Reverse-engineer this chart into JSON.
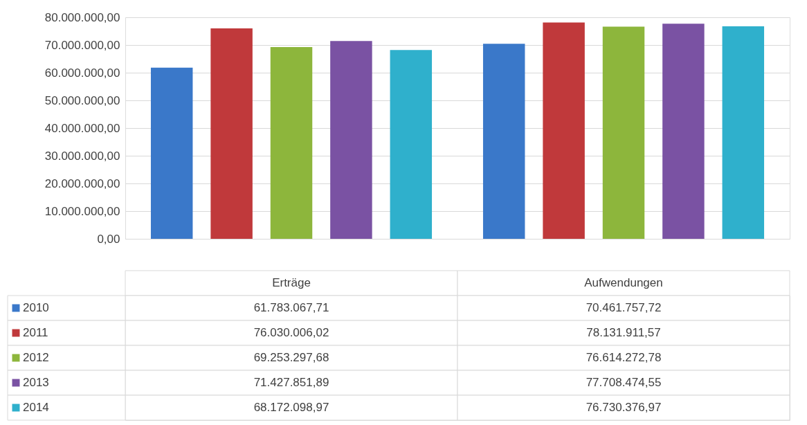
{
  "chart_data": {
    "type": "bar",
    "categories": [
      "Erträge",
      "Aufwendungen"
    ],
    "series": [
      {
        "name": "2010",
        "color": "#3a78c9",
        "values": [
          61783067.71,
          70461757.72
        ],
        "value_labels": [
          "61.783.067,71",
          "70.461.757,72"
        ]
      },
      {
        "name": "2011",
        "color": "#c0393b",
        "values": [
          76030006.02,
          78131911.57
        ],
        "value_labels": [
          "76.030.006,02",
          "78.131.911,57"
        ]
      },
      {
        "name": "2012",
        "color": "#8db63c",
        "values": [
          69253297.68,
          76614272.78
        ],
        "value_labels": [
          "69.253.297,68",
          "76.614.272,78"
        ]
      },
      {
        "name": "2013",
        "color": "#7a52a3",
        "values": [
          71427851.89,
          77708474.55
        ],
        "value_labels": [
          "71.427.851,89",
          "77.708.474,55"
        ]
      },
      {
        "name": "2014",
        "color": "#2fb0cc",
        "values": [
          68172098.97,
          76730376.97
        ],
        "value_labels": [
          "68.172.098,97",
          "76.730.376,97"
        ]
      }
    ],
    "ylim": [
      0,
      80000000
    ],
    "yticks": [
      {
        "value": 0,
        "label": "0,00"
      },
      {
        "value": 10000000,
        "label": "10.000.000,00"
      },
      {
        "value": 20000000,
        "label": "20.000.000,00"
      },
      {
        "value": 30000000,
        "label": "30.000.000,00"
      },
      {
        "value": 40000000,
        "label": "40.000.000,00"
      },
      {
        "value": 50000000,
        "label": "50.000.000,00"
      },
      {
        "value": 60000000,
        "label": "60.000.000,00"
      },
      {
        "value": 70000000,
        "label": "70.000.000,00"
      },
      {
        "value": 80000000,
        "label": "80.000.000,00"
      }
    ],
    "grid": "y",
    "legend": "bottom"
  }
}
